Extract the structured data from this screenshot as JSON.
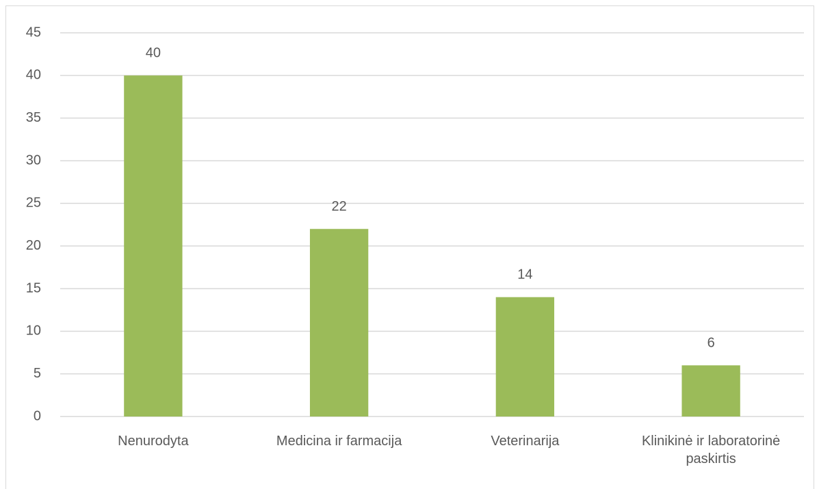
{
  "chart_data": {
    "type": "bar",
    "categories": [
      "Nenurodyta",
      "Medicina ir farmacija",
      "Veterinarija",
      "Klinikinė ir laboratorinė paskirtis"
    ],
    "values": [
      40,
      22,
      14,
      6
    ],
    "color": "#9bbb59",
    "ylim": [
      0,
      45
    ],
    "yticks": [
      0,
      5,
      10,
      15,
      20,
      25,
      30,
      35,
      40,
      45
    ],
    "grid": true
  }
}
